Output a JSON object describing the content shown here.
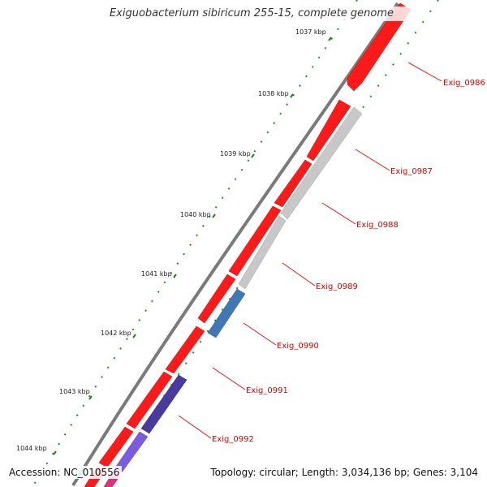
{
  "title": "Exiguobacterium sibiricum 255-15, complete genome",
  "footer": {
    "accession": "Accession: NC_010556",
    "summary": "Topology: circular; Length: 3,034,136 bp; Genes: 3,104"
  },
  "colors": {
    "backbone": "#8a8a8a",
    "forward_gene": "#ff1a1a",
    "reverse_gene": "#c4c4c4",
    "tick": "#1f7a1f",
    "label_line": "#ee1111",
    "label_text": "#dd0000"
  },
  "ticks": [
    {
      "label": "1037 kbp"
    },
    {
      "label": "1038 kbp"
    },
    {
      "label": "1039 kbp"
    },
    {
      "label": "1040 kbp"
    },
    {
      "label": "1041 kbp"
    },
    {
      "label": "1042 kbp"
    },
    {
      "label": "1043 kbp"
    },
    {
      "label": "1044 kbp"
    }
  ],
  "genes": [
    {
      "name": "Exig_0986",
      "strand": "forward",
      "color": "#ff1a1a"
    },
    {
      "name": "Exig_0987",
      "strand": "forward",
      "color": "#ff1a1a"
    },
    {
      "name": "Exig_0988",
      "strand": "reverse",
      "color": "#c8c8c8"
    },
    {
      "name": "Exig_0989",
      "strand": "forward",
      "color": "#ff1a1a"
    },
    {
      "name": "Exig_0990",
      "strand": "reverse",
      "color": "#3f78b5"
    },
    {
      "name": "Exig_0991",
      "strand": "forward",
      "color": "#ff1a1a"
    },
    {
      "name": "Exig_0992",
      "strand": "reverse",
      "color": "#4a3aa0"
    }
  ]
}
